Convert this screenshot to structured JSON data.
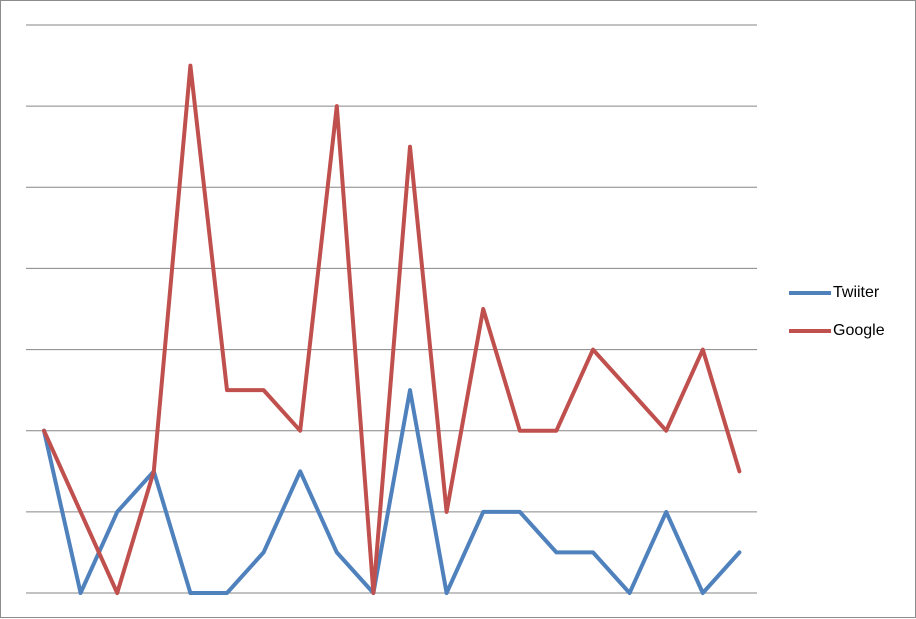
{
  "chart_data": {
    "type": "line",
    "x": [
      1,
      2,
      3,
      4,
      5,
      6,
      7,
      8,
      9,
      10,
      11,
      12,
      13,
      14,
      15,
      16,
      17,
      18,
      19,
      20
    ],
    "ylim": [
      0,
      7
    ],
    "grid": true,
    "legend_position": "right",
    "series": [
      {
        "name": "Twiiter",
        "color": "#4f81bd",
        "values": [
          2,
          0,
          1,
          1.5,
          0,
          0,
          0.5,
          1.5,
          0.5,
          0,
          2.5,
          0,
          1,
          1,
          0.5,
          0.5,
          0,
          1,
          0,
          0.5
        ]
      },
      {
        "name": "Google",
        "color": "#c0504d",
        "values": [
          2,
          1,
          0,
          1.5,
          6.5,
          2.5,
          2.5,
          2,
          6,
          0,
          5.5,
          1,
          3.5,
          2,
          2,
          3,
          2.5,
          2,
          3,
          1.5
        ]
      }
    ]
  }
}
